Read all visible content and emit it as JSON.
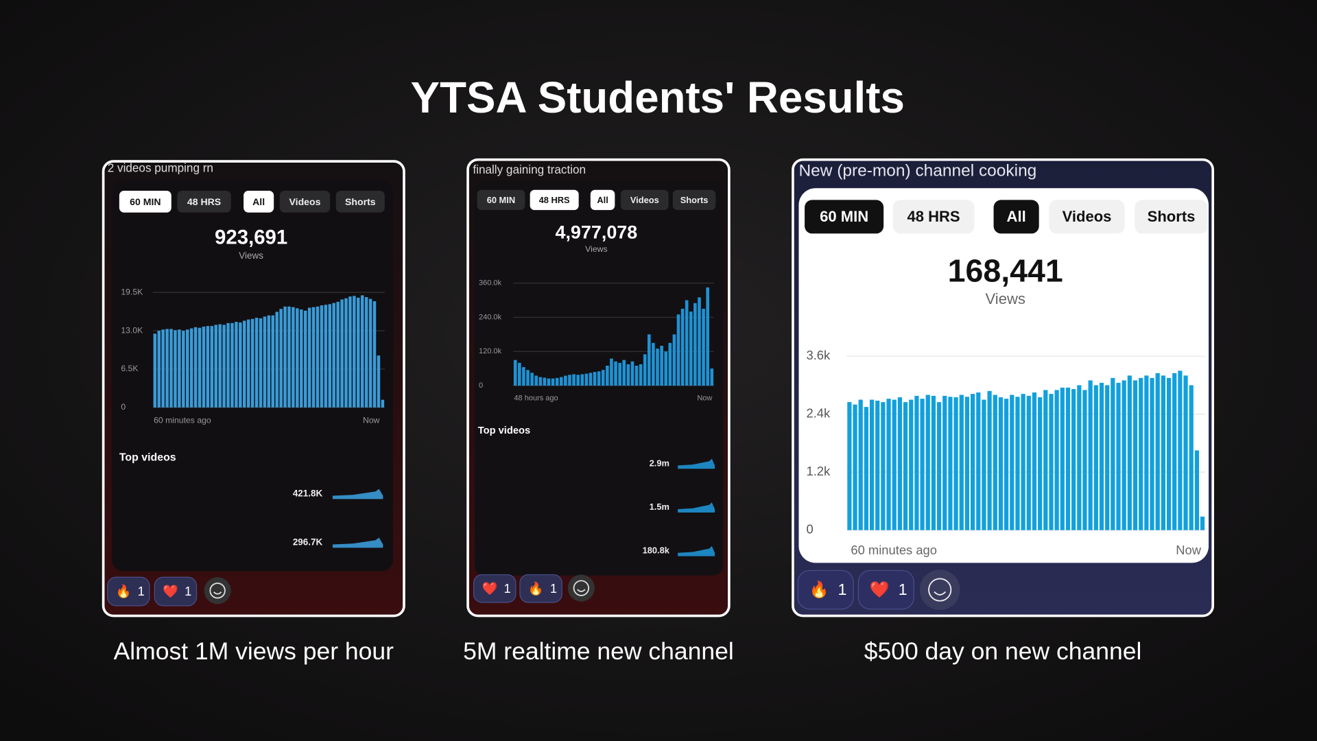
{
  "slide": {
    "title": "YTSA Students' Results"
  },
  "panels": [
    {
      "message": "2 videos pumping rn",
      "caption": "Almost 1M views per hour",
      "tabs": [
        "60 MIN",
        "48 HRS",
        "All",
        "Videos",
        "Shorts"
      ],
      "total": "923,691",
      "total_label": "Views",
      "x_start": "60 minutes ago",
      "x_end": "Now",
      "top_videos_title": "Top videos",
      "top_videos": [
        "421.8K",
        "296.7K"
      ],
      "reactions": [
        {
          "emoji": "🔥",
          "count": "1"
        },
        {
          "emoji": "❤️",
          "count": "1"
        }
      ]
    },
    {
      "message": "finally gaining traction",
      "caption": "5M realtime new channel",
      "tabs": [
        "60 MIN",
        "48 HRS",
        "All",
        "Videos",
        "Shorts"
      ],
      "total": "4,977,078",
      "total_label": "Views",
      "x_start": "48 hours ago",
      "x_end": "Now",
      "top_videos_title": "Top videos",
      "top_videos": [
        "2.9m",
        "1.5m",
        "180.8k"
      ],
      "reactions": [
        {
          "emoji": "❤️",
          "count": "1"
        },
        {
          "emoji": "🔥",
          "count": "1"
        }
      ]
    },
    {
      "message": "New (pre-mon) channel cooking",
      "caption": "$500 day on new channel",
      "tabs": [
        "60 MIN",
        "48 HRS",
        "All",
        "Videos",
        "Shorts"
      ],
      "total": "168,441",
      "total_label": "Views",
      "x_start": "60 minutes ago",
      "x_end": "Now",
      "reactions": [
        {
          "emoji": "🔥",
          "count": "1"
        },
        {
          "emoji": "❤️",
          "count": "1"
        }
      ]
    }
  ],
  "chart_data": [
    {
      "type": "bar",
      "color": "#3a9bd8",
      "grid": true,
      "ylim": [
        0,
        19500
      ],
      "yticks": [
        0,
        {
          "value": 6500,
          "label": "6.5K"
        },
        {
          "value": 13000,
          "label": "13.0K"
        },
        {
          "value": 19500,
          "label": "19.5K"
        }
      ],
      "values": [
        12500,
        13000,
        13200,
        13300,
        13300,
        13100,
        13200,
        13000,
        13200,
        13400,
        13600,
        13500,
        13700,
        13800,
        13800,
        14000,
        14100,
        14000,
        14300,
        14300,
        14500,
        14400,
        14700,
        14900,
        15000,
        15200,
        15100,
        15400,
        15600,
        15600,
        16200,
        16700,
        17100,
        17100,
        17000,
        16800,
        16600,
        16400,
        16900,
        17000,
        17100,
        17300,
        17400,
        17500,
        17700,
        17900,
        18300,
        18500,
        18800,
        18900,
        18600,
        19000,
        18700,
        18400,
        18000,
        8800,
        1300
      ]
    },
    {
      "type": "bar",
      "color": "#1f92d4",
      "grid": true,
      "ylim": [
        0,
        360000
      ],
      "yticks": [
        0,
        {
          "value": 120000,
          "label": "120.0k"
        },
        {
          "value": 240000,
          "label": "240.0k"
        },
        {
          "value": 360000,
          "label": "360.0k"
        }
      ],
      "values": [
        90000,
        80000,
        65000,
        55000,
        45000,
        35000,
        30000,
        28000,
        25000,
        25000,
        27000,
        30000,
        35000,
        38000,
        40000,
        38000,
        40000,
        42000,
        45000,
        48000,
        50000,
        55000,
        70000,
        95000,
        85000,
        80000,
        90000,
        75000,
        85000,
        70000,
        75000,
        110000,
        180000,
        150000,
        130000,
        140000,
        120000,
        150000,
        180000,
        250000,
        270000,
        300000,
        260000,
        290000,
        310000,
        270000,
        345000,
        60000
      ]
    },
    {
      "type": "bar",
      "color": "#12a0dc",
      "grid": true,
      "ylim": [
        0,
        3600
      ],
      "yticks": [
        0,
        {
          "value": 1200,
          "label": "1.2k"
        },
        {
          "value": 2400,
          "label": "2.4k"
        },
        {
          "value": 3600,
          "label": "3.6k"
        }
      ],
      "values": [
        2650,
        2600,
        2700,
        2550,
        2700,
        2680,
        2650,
        2720,
        2700,
        2750,
        2650,
        2700,
        2780,
        2720,
        2800,
        2780,
        2650,
        2780,
        2760,
        2750,
        2800,
        2760,
        2820,
        2850,
        2700,
        2880,
        2800,
        2750,
        2720,
        2800,
        2760,
        2820,
        2780,
        2850,
        2750,
        2900,
        2820,
        2900,
        2950,
        2950,
        2920,
        3000,
        2900,
        3100,
        3000,
        3050,
        3000,
        3150,
        3050,
        3100,
        3200,
        3100,
        3150,
        3200,
        3150,
        3250,
        3200,
        3150,
        3250,
        3300,
        3200,
        3000,
        1650,
        280
      ]
    }
  ]
}
